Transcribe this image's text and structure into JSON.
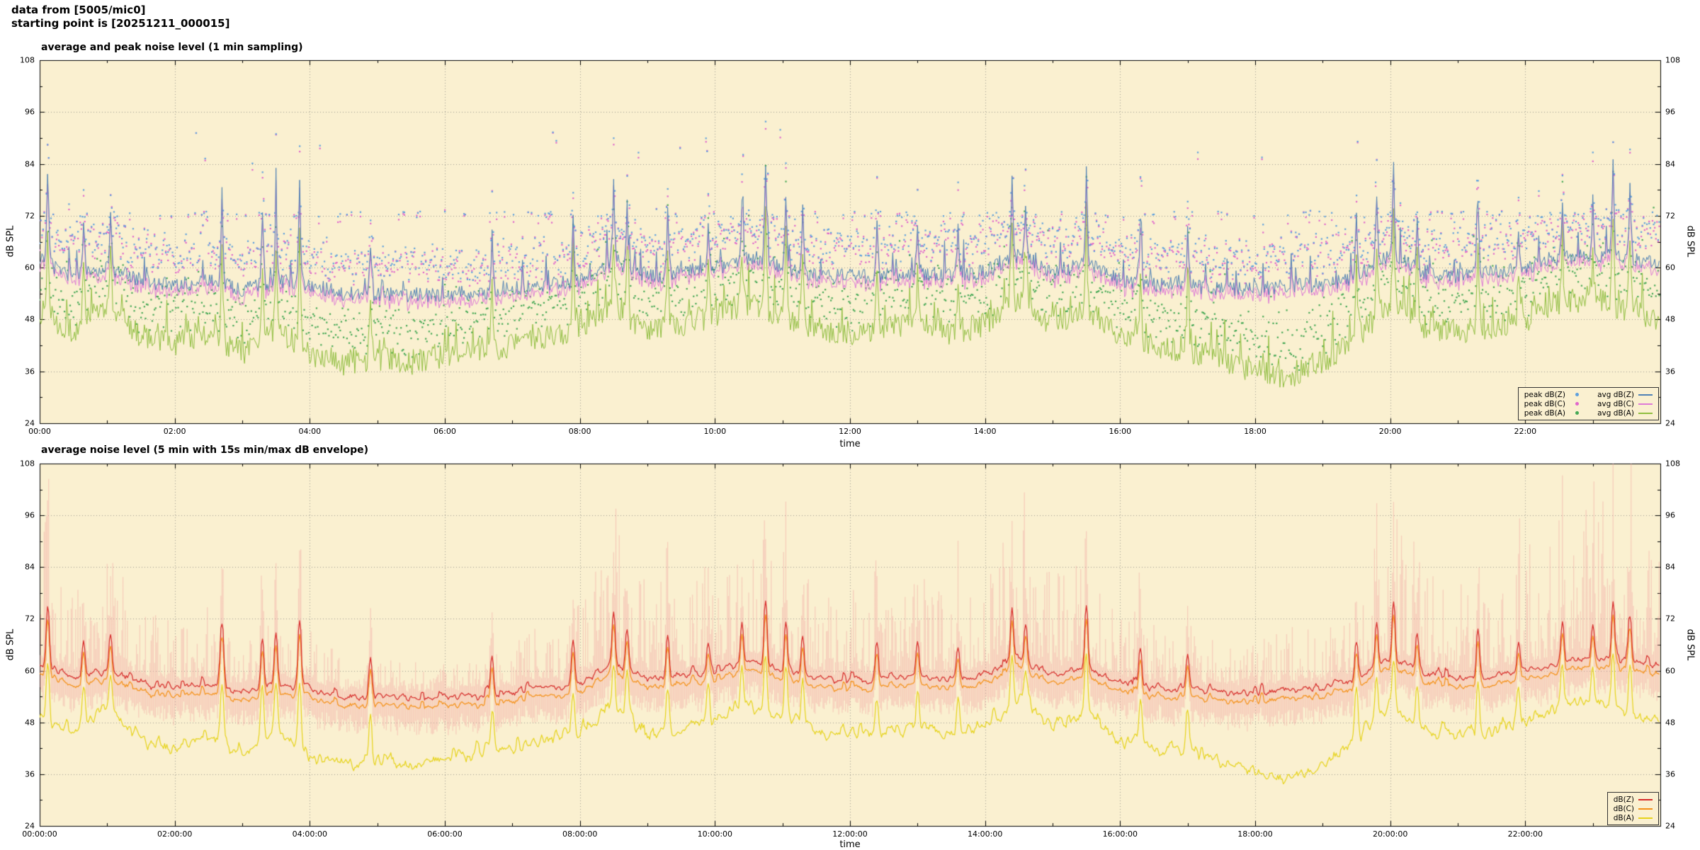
{
  "header": {
    "line1": "data from [5005/mic0]",
    "line2": "starting point is [20251211_000015]"
  },
  "colors": {
    "plot_background": "#faf0d0",
    "grid": "#6e6e6e",
    "axis": "#000000",
    "envelope": "#f3a8a4"
  },
  "chart_data": [
    {
      "type": "line",
      "title": "average and peak noise level (1 min sampling)",
      "xlabel": "time",
      "ylabel": "dB SPL",
      "ylabel_right": "dB SPL",
      "ylim": [
        24,
        108
      ],
      "ytick_labels": [
        24,
        36,
        48,
        60,
        72,
        84,
        96,
        108
      ],
      "x_range_hours": [
        0,
        24
      ],
      "xtick_hours": [
        0,
        2,
        4,
        6,
        8,
        10,
        12,
        14,
        16,
        18,
        20,
        22
      ],
      "xtick_labels": [
        "00:00",
        "02:00",
        "04:00",
        "06:00",
        "08:00",
        "10:00",
        "12:00",
        "14:00",
        "16:00",
        "18:00",
        "20:00",
        "22:00"
      ],
      "grid": true,
      "legend_position": "bottom-right",
      "sampling": "1 min",
      "keypoint_dt_hours": 0.5,
      "series": [
        {
          "name": "peak dB(Z)",
          "style": "points",
          "color": "#5ea0dd",
          "derived": {
            "from": "avg dB(Z)",
            "offset_db": 3.5,
            "spread_db": 7,
            "band_db": 72.3,
            "band_fraction": 0.1,
            "flier_db_min": 84,
            "flier_db_max": 93,
            "flier_fraction": 0.007
          }
        },
        {
          "name": "peak dB(C)",
          "style": "points",
          "color": "#e066cc",
          "derived": {
            "from": "peak dB(Z)",
            "offset_db": -0.8,
            "spread_db": 2.6
          }
        },
        {
          "name": "peak dB(A)",
          "style": "points",
          "color": "#44a854",
          "derived": {
            "from": "avg dB(A)",
            "offset_db": 3,
            "spread_db": 8,
            "flier_fraction": 0.01
          }
        },
        {
          "name": "avg dB(Z)",
          "style": "line",
          "color": "#4f81b4",
          "values_db": [
            62,
            58,
            60,
            57,
            56,
            57,
            55,
            57,
            56,
            54,
            54,
            53.5,
            54,
            54,
            55,
            56,
            57,
            62,
            58,
            59,
            60,
            62,
            60,
            58,
            58,
            58,
            59,
            58,
            59,
            63,
            59,
            61,
            57,
            56,
            56,
            55,
            55,
            56,
            56,
            58,
            63,
            59,
            58,
            59,
            60,
            62,
            63,
            62,
            61
          ]
        },
        {
          "name": "avg dB(C)",
          "style": "line",
          "color": "#de7ad6",
          "values_db": [
            60.5,
            56.5,
            58.5,
            55.5,
            54.5,
            55.5,
            53.5,
            55.5,
            54.5,
            52.5,
            52.5,
            52,
            52.5,
            52.5,
            53.5,
            54.5,
            55.5,
            60.5,
            56.5,
            57.5,
            58.5,
            60.5,
            58.5,
            56.5,
            56.5,
            56.5,
            57.5,
            56.5,
            57.5,
            61.5,
            57.5,
            59.5,
            55.5,
            54.5,
            54.5,
            53.5,
            53.5,
            54.5,
            54.5,
            56.5,
            61.5,
            57.5,
            56.5,
            57.5,
            58.5,
            60.5,
            61.5,
            60.5,
            59.5
          ]
        },
        {
          "name": "avg dB(A)",
          "style": "line",
          "color": "#8fbe3f",
          "values_db": [
            50,
            45,
            52,
            44,
            42,
            45,
            40,
            46,
            40,
            38,
            39,
            38,
            40,
            41,
            42,
            44,
            46,
            52,
            45,
            47,
            49,
            52,
            49,
            46,
            45,
            46,
            47,
            45,
            47,
            53,
            47,
            50,
            44,
            42,
            41,
            39,
            36,
            35,
            38,
            44,
            52,
            46,
            45,
            46,
            48,
            52,
            53,
            50,
            48
          ]
        }
      ],
      "events": [
        [
          0.12,
          84
        ],
        [
          0.65,
          72
        ],
        [
          1.05,
          74
        ],
        [
          2.7,
          78
        ],
        [
          3.3,
          73
        ],
        [
          3.5,
          75
        ],
        [
          3.85,
          80
        ],
        [
          4.9,
          66
        ],
        [
          6.7,
          68
        ],
        [
          7.9,
          71
        ],
        [
          8.5,
          79
        ],
        [
          8.7,
          74
        ],
        [
          9.3,
          73
        ],
        [
          9.9,
          71
        ],
        [
          10.4,
          75
        ],
        [
          10.75,
          84
        ],
        [
          11.05,
          78
        ],
        [
          11.3,
          74
        ],
        [
          12.4,
          70
        ],
        [
          13.0,
          71
        ],
        [
          13.6,
          69
        ],
        [
          14.4,
          80
        ],
        [
          14.6,
          75
        ],
        [
          15.5,
          82
        ],
        [
          16.3,
          70
        ],
        [
          17.0,
          68
        ],
        [
          19.5,
          72
        ],
        [
          19.8,
          76
        ],
        [
          20.05,
          83
        ],
        [
          20.4,
          73
        ],
        [
          21.3,
          75
        ],
        [
          21.9,
          70
        ],
        [
          22.55,
          76
        ],
        [
          23.0,
          74
        ],
        [
          23.3,
          84
        ],
        [
          23.55,
          79
        ]
      ]
    },
    {
      "type": "line",
      "title": "average noise level (5 min with 15s min/max dB envelope)",
      "xlabel": "time",
      "ylabel": "dB SPL",
      "ylabel_right": "dB SPL",
      "ylim": [
        24,
        108
      ],
      "ytick_labels": [
        24,
        36,
        48,
        60,
        72,
        84,
        96,
        108
      ],
      "x_range_hours": [
        0,
        24
      ],
      "xtick_hours": [
        0,
        2,
        4,
        6,
        8,
        10,
        12,
        14,
        16,
        18,
        20,
        22
      ],
      "xtick_labels": [
        "00:00:00",
        "02:00:00",
        "04:00:00",
        "06:00:00",
        "08:00:00",
        "10:00:00",
        "12:00:00",
        "14:00:00",
        "16:00:00",
        "18:00:00",
        "20:00:00",
        "22:00:00"
      ],
      "grid": true,
      "legend_position": "bottom-right",
      "sampling": "5 min",
      "keypoint_dt_hours": 0.5,
      "envelope": {
        "color": "#f3a8a4",
        "alpha": 0.5,
        "typical_extra_db": 8,
        "burst_extra_db": 26,
        "min_below_db": 4
      },
      "series": [
        {
          "name": "dB(Z)",
          "style": "line",
          "color": "#d62a28",
          "values_db": [
            62,
            58,
            60,
            57,
            56,
            57,
            55,
            57,
            56,
            54,
            54,
            53.5,
            54,
            54,
            55,
            56,
            57,
            62,
            58,
            59,
            60,
            62,
            60,
            58,
            58,
            58,
            59,
            58,
            59,
            63,
            59,
            61,
            57,
            56,
            56,
            55,
            55,
            56,
            56,
            58,
            63,
            59,
            58,
            59,
            60,
            62,
            63,
            62,
            61
          ]
        },
        {
          "name": "dB(C)",
          "style": "line",
          "color": "#f59116",
          "values_db": [
            60,
            56,
            58,
            55,
            54,
            55,
            53,
            55,
            54,
            52,
            52,
            51.5,
            52,
            52,
            53,
            54,
            55,
            60,
            56,
            57,
            58,
            60,
            58,
            56,
            56,
            56,
            57,
            56,
            57,
            61,
            57,
            59,
            55,
            54,
            54,
            53,
            53,
            54,
            54,
            56,
            61,
            57,
            56,
            57,
            58,
            60,
            61,
            60,
            59
          ]
        },
        {
          "name": "dB(A)",
          "style": "line",
          "color": "#e6d319",
          "values_db": [
            50,
            45,
            52,
            44,
            42,
            45,
            40,
            46,
            40,
            38,
            39,
            38,
            40,
            41,
            42,
            44,
            46,
            52,
            45,
            47,
            49,
            52,
            49,
            46,
            45,
            46,
            47,
            45,
            47,
            53,
            47,
            50,
            44,
            42,
            41,
            39,
            36,
            35,
            38,
            44,
            52,
            46,
            45,
            46,
            48,
            52,
            53,
            50,
            48
          ]
        }
      ],
      "events": [
        [
          0.12,
          84
        ],
        [
          0.65,
          72
        ],
        [
          1.05,
          74
        ],
        [
          2.7,
          78
        ],
        [
          3.3,
          73
        ],
        [
          3.5,
          75
        ],
        [
          3.85,
          80
        ],
        [
          4.9,
          66
        ],
        [
          6.7,
          68
        ],
        [
          7.9,
          71
        ],
        [
          8.5,
          79
        ],
        [
          8.7,
          74
        ],
        [
          9.3,
          73
        ],
        [
          9.9,
          71
        ],
        [
          10.4,
          75
        ],
        [
          10.75,
          84
        ],
        [
          11.05,
          78
        ],
        [
          11.3,
          74
        ],
        [
          12.4,
          70
        ],
        [
          13.0,
          71
        ],
        [
          13.6,
          69
        ],
        [
          14.4,
          80
        ],
        [
          14.6,
          75
        ],
        [
          15.5,
          82
        ],
        [
          16.3,
          70
        ],
        [
          17.0,
          68
        ],
        [
          19.5,
          72
        ],
        [
          19.8,
          76
        ],
        [
          20.05,
          83
        ],
        [
          20.4,
          73
        ],
        [
          21.3,
          75
        ],
        [
          21.9,
          70
        ],
        [
          22.55,
          76
        ],
        [
          23.0,
          74
        ],
        [
          23.3,
          84
        ],
        [
          23.55,
          79
        ]
      ]
    }
  ]
}
